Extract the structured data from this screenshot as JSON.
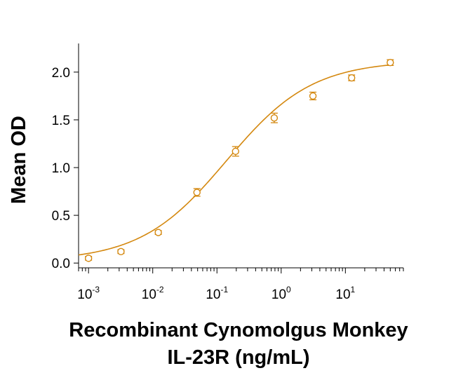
{
  "chart_data": {
    "type": "scatter",
    "xscale": "log",
    "xlim": [
      0.0007,
      80
    ],
    "ylim": [
      -0.05,
      2.3
    ],
    "xlabel_line1": "Recombinant Cynomolgus Monkey",
    "xlabel_line2": "IL-23R (ng/mL)",
    "ylabel": "Mean OD",
    "x_ticks": [
      {
        "base": "10",
        "exp": "-3",
        "value": 0.001
      },
      {
        "base": "10",
        "exp": "-2",
        "value": 0.01
      },
      {
        "base": "10",
        "exp": "-1",
        "value": 0.1
      },
      {
        "base": "10",
        "exp": "0",
        "value": 1
      },
      {
        "base": "10",
        "exp": "1",
        "value": 10
      }
    ],
    "y_ticks": [
      "0.0",
      "0.5",
      "1.0",
      "1.5",
      "2.0"
    ],
    "y_tick_values": [
      0,
      0.5,
      1.0,
      1.5,
      2.0
    ],
    "grid": false,
    "color": "#D4880F",
    "points": [
      {
        "x": 0.001,
        "y": 0.05,
        "err": 0.02
      },
      {
        "x": 0.0032,
        "y": 0.12,
        "err": 0.02
      },
      {
        "x": 0.0122,
        "y": 0.32,
        "err": 0.02
      },
      {
        "x": 0.0488,
        "y": 0.74,
        "err": 0.04
      },
      {
        "x": 0.195,
        "y": 1.17,
        "err": 0.05
      },
      {
        "x": 0.78,
        "y": 1.52,
        "err": 0.05
      },
      {
        "x": 3.125,
        "y": 1.75,
        "err": 0.04
      },
      {
        "x": 12.5,
        "y": 1.94,
        "err": 0.03
      },
      {
        "x": 50,
        "y": 2.1,
        "err": 0.03
      }
    ],
    "fit": {
      "model": "4PL",
      "bottom": 0.02,
      "top": 2.12,
      "ec50": 0.14,
      "hill": 0.65
    }
  }
}
